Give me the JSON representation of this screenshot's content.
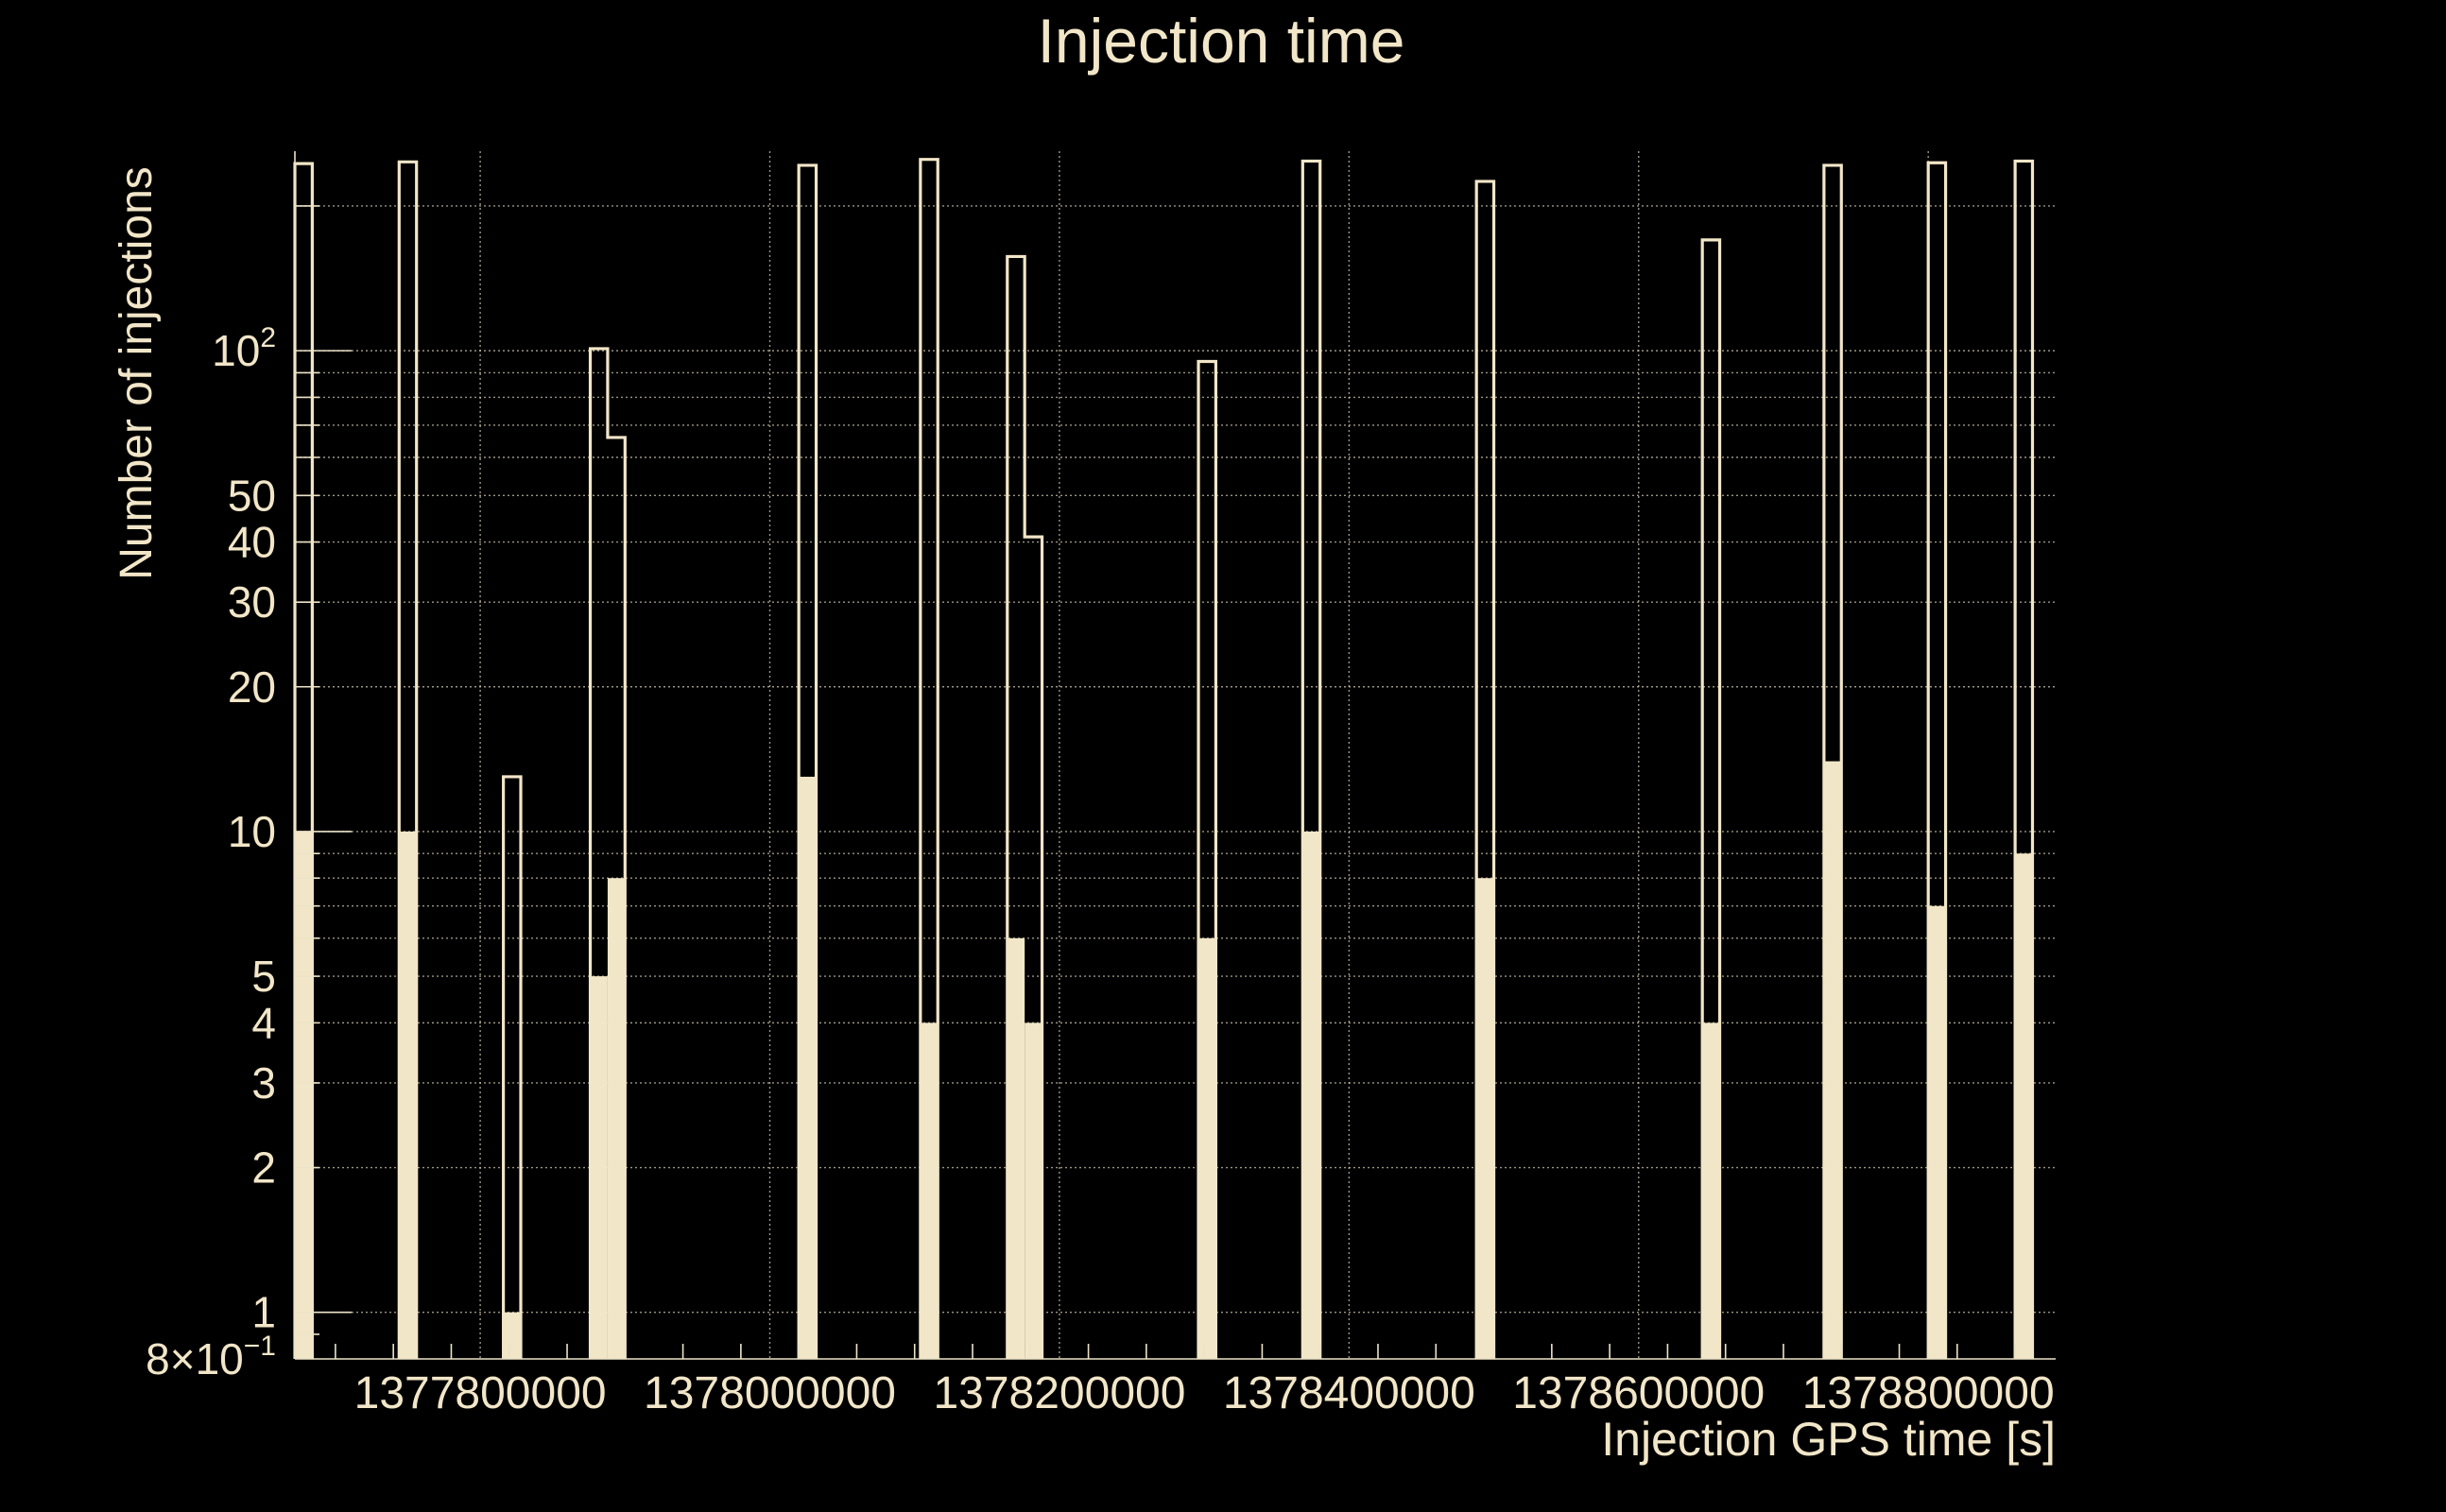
{
  "chart_data": {
    "type": "bar",
    "title": "Injection time",
    "xlabel": "Injection GPS time [s]",
    "ylabel": "Number of injections",
    "yscale": "log",
    "ylim": [
      0.8,
      260
    ],
    "xlim": [
      1377672000,
      1378888000
    ],
    "grid": true,
    "colors": {
      "background": "#000000",
      "total_outline": "#f2e6c8",
      "found_fill": "#f2e6c8",
      "text": "#f2e6c8",
      "grid": "#cfc8b0"
    },
    "x_tick_labels": [
      "1377800000",
      "1378000000",
      "1378200000",
      "1378400000",
      "1378600000",
      "1378800000"
    ],
    "x_tick_values": [
      1377800000,
      1378000000,
      1378200000,
      1378400000,
      1378600000,
      1378800000
    ],
    "y_tick_labels": [
      {
        "value": 0.8,
        "label": "8×10",
        "sup": "−1"
      },
      {
        "value": 1,
        "label": "1"
      },
      {
        "value": 2,
        "label": "2"
      },
      {
        "value": 3,
        "label": "3"
      },
      {
        "value": 4,
        "label": "4"
      },
      {
        "value": 5,
        "label": "5"
      },
      {
        "value": 10,
        "label": "10"
      },
      {
        "value": 20,
        "label": "20"
      },
      {
        "value": 30,
        "label": "30"
      },
      {
        "value": 40,
        "label": "40"
      },
      {
        "value": 50,
        "label": "50"
      },
      {
        "value": 100,
        "label": "10",
        "sup": "2"
      }
    ],
    "bin_width": 12000,
    "series": [
      {
        "kind": "outline",
        "bins": [
          {
            "x": 1377672000,
            "value": 245
          },
          {
            "x": 1377744000,
            "value": 247
          },
          {
            "x": 1377816000,
            "value": 13
          },
          {
            "x": 1377876000,
            "value": 101
          },
          {
            "x": 1377888000,
            "value": 66
          },
          {
            "x": 1378020000,
            "value": 243
          },
          {
            "x": 1378104000,
            "value": 250
          },
          {
            "x": 1378164000,
            "value": 157
          },
          {
            "x": 1378176000,
            "value": 41
          },
          {
            "x": 1378296000,
            "value": 95
          },
          {
            "x": 1378368000,
            "value": 248
          },
          {
            "x": 1378488000,
            "value": 225
          },
          {
            "x": 1378644000,
            "value": 170
          },
          {
            "x": 1378728000,
            "value": 243
          },
          {
            "x": 1378800000,
            "value": 246
          },
          {
            "x": 1378860000,
            "value": 248
          }
        ]
      },
      {
        "kind": "filled",
        "bins": [
          {
            "x": 1377672000,
            "value": 10
          },
          {
            "x": 1377744000,
            "value": 10
          },
          {
            "x": 1377816000,
            "value": 1
          },
          {
            "x": 1377876000,
            "value": 5
          },
          {
            "x": 1377888000,
            "value": 8
          },
          {
            "x": 1378020000,
            "value": 13
          },
          {
            "x": 1378104000,
            "value": 4
          },
          {
            "x": 1378164000,
            "value": 6
          },
          {
            "x": 1378176000,
            "value": 4
          },
          {
            "x": 1378296000,
            "value": 6
          },
          {
            "x": 1378368000,
            "value": 10
          },
          {
            "x": 1378488000,
            "value": 8
          },
          {
            "x": 1378644000,
            "value": 4
          },
          {
            "x": 1378728000,
            "value": 14
          },
          {
            "x": 1378800000,
            "value": 7
          },
          {
            "x": 1378860000,
            "value": 9
          }
        ]
      }
    ]
  }
}
